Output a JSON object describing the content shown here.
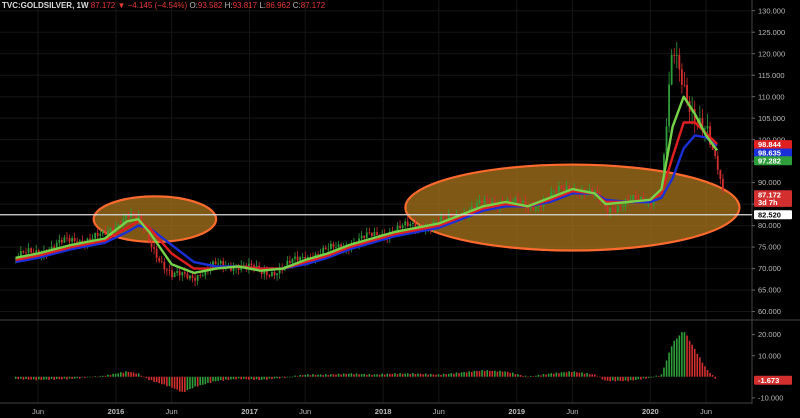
{
  "header": {
    "symbol": "TVC:GOLDSILVER, 1W",
    "last": "87.172",
    "change": "▼ −4.145 (−4.54%)",
    "open_label": "O:",
    "open": "93.582",
    "high_label": "H:",
    "high": "93.817",
    "low_label": "L:",
    "low": "86.962",
    "close_label": "C:",
    "close": "87.172"
  },
  "colors": {
    "background": "#000000",
    "candle_up": "#2e9e3a",
    "candle_down": "#d32f2f",
    "ma_fast": "#76d349",
    "ma_mid": "#e02020",
    "ma_slow": "#1b2fd9",
    "ellipse_fill": "#b07a1e",
    "ellipse_stroke": "#ff6a2e",
    "hline": "#dddddd"
  },
  "chart_data": [
    {
      "type": "candlestick",
      "title": "",
      "x_ticks": [
        "Jun",
        "2016",
        "Jun",
        "2017",
        "Jun",
        "2018",
        "Jun",
        "2019",
        "Jun",
        "2020",
        "Jun"
      ],
      "x_tick_dates": [
        "2015-06",
        "2016-01",
        "2016-06",
        "2017-01",
        "2017-06",
        "2018-01",
        "2018-06",
        "2019-01",
        "2019-06",
        "2020-01",
        "2020-06"
      ],
      "y_ticks": [
        "130.000",
        "125.000",
        "120.000",
        "115.000",
        "110.000",
        "105.000",
        "100.000",
        "95.000",
        "90.000",
        "85.000",
        "80.000",
        "75.000",
        "70.000",
        "65.000",
        "60.000"
      ],
      "ylim": [
        58.5,
        132.5
      ],
      "price_tags": [
        {
          "label": "98.844",
          "value": 98.844,
          "color": "#e02020"
        },
        {
          "label": "98.635",
          "value": 96.9,
          "color": "#1b2fd9"
        },
        {
          "label": "97.282",
          "value": 95.1,
          "color": "#2e9e3a"
        },
        {
          "label": "87.172",
          "value": 87.172,
          "color": "#d32f2f"
        },
        {
          "label": "3d 7h",
          "value": 85.4,
          "color": "#d32f2f"
        },
        {
          "label": "82.520",
          "value": 82.52,
          "color": "#ffffff"
        }
      ],
      "horizontal_line": 82.52,
      "series_close": [
        [
          "2015-04",
          72.5
        ],
        [
          "2015-06",
          74
        ],
        [
          "2015-09",
          76.5
        ],
        [
          "2015-12",
          77.5
        ],
        [
          "2016-02",
          83
        ],
        [
          "2016-03",
          81
        ],
        [
          "2016-04",
          76.5
        ],
        [
          "2016-06",
          68
        ],
        [
          "2016-08",
          68.5
        ],
        [
          "2016-10",
          70.5
        ],
        [
          "2016-12",
          71
        ],
        [
          "2017-02",
          69
        ],
        [
          "2017-04",
          70
        ],
        [
          "2017-06",
          73
        ],
        [
          "2017-08",
          74
        ],
        [
          "2017-10",
          76
        ],
        [
          "2017-12",
          77.5
        ],
        [
          "2018-02",
          79
        ],
        [
          "2018-04",
          80
        ],
        [
          "2018-06",
          80.5
        ],
        [
          "2018-08",
          83
        ],
        [
          "2018-10",
          85
        ],
        [
          "2018-12",
          86
        ],
        [
          "2019-02",
          84
        ],
        [
          "2019-04",
          87
        ],
        [
          "2019-06",
          89
        ],
        [
          "2019-08",
          87
        ],
        [
          "2019-09",
          84
        ],
        [
          "2019-11",
          85.5
        ],
        [
          "2020-01",
          86
        ],
        [
          "2020-02",
          89
        ],
        [
          "2020-03",
          120
        ],
        [
          "2020-04",
          113
        ],
        [
          "2020-05",
          106
        ],
        [
          "2020-06",
          101
        ],
        [
          "2020-07",
          94
        ],
        [
          "2020-07-20",
          87.172
        ]
      ],
      "moving_averages": [
        {
          "color": "#76d349",
          "values": [
            [
              "2015-04",
              72.5
            ],
            [
              "2015-06",
              73.5
            ],
            [
              "2015-09",
              75.5
            ],
            [
              "2015-12",
              77
            ],
            [
              "2016-02",
              81
            ],
            [
              "2016-03",
              81.5
            ],
            [
              "2016-04",
              78.5
            ],
            [
              "2016-06",
              71
            ],
            [
              "2016-08",
              69
            ],
            [
              "2016-10",
              70
            ],
            [
              "2016-12",
              70.5
            ],
            [
              "2017-02",
              69.5
            ],
            [
              "2017-04",
              70
            ],
            [
              "2017-06",
              72
            ],
            [
              "2017-08",
              73.5
            ],
            [
              "2017-10",
              75.5
            ],
            [
              "2017-12",
              77
            ],
            [
              "2018-02",
              78.5
            ],
            [
              "2018-04",
              79.5
            ],
            [
              "2018-06",
              80.5
            ],
            [
              "2018-08",
              82.5
            ],
            [
              "2018-10",
              84.5
            ],
            [
              "2018-12",
              85.5
            ],
            [
              "2019-02",
              84.5
            ],
            [
              "2019-04",
              86.5
            ],
            [
              "2019-06",
              88.5
            ],
            [
              "2019-08",
              87.5
            ],
            [
              "2019-09",
              85
            ],
            [
              "2019-11",
              85.5
            ],
            [
              "2020-01",
              86
            ],
            [
              "2020-02",
              88.5
            ],
            [
              "2020-03",
              103
            ],
            [
              "2020-04",
              110
            ],
            [
              "2020-05",
              106
            ],
            [
              "2020-06",
              101
            ],
            [
              "2020-07",
              97.5
            ]
          ]
        },
        {
          "color": "#e02020",
          "values": [
            [
              "2015-04",
              72
            ],
            [
              "2015-06",
              73
            ],
            [
              "2015-09",
              75
            ],
            [
              "2015-12",
              76.5
            ],
            [
              "2016-02",
              79.5
            ],
            [
              "2016-03",
              81
            ],
            [
              "2016-04",
              79.5
            ],
            [
              "2016-06",
              73.5
            ],
            [
              "2016-08",
              70
            ],
            [
              "2016-10",
              70
            ],
            [
              "2016-12",
              70.5
            ],
            [
              "2017-02",
              70
            ],
            [
              "2017-04",
              70
            ],
            [
              "2017-06",
              71.5
            ],
            [
              "2017-08",
              73
            ],
            [
              "2017-10",
              75
            ],
            [
              "2017-12",
              76.5
            ],
            [
              "2018-02",
              78
            ],
            [
              "2018-04",
              79
            ],
            [
              "2018-06",
              80
            ],
            [
              "2018-08",
              82
            ],
            [
              "2018-10",
              84
            ],
            [
              "2018-12",
              85
            ],
            [
              "2019-02",
              84.5
            ],
            [
              "2019-04",
              86
            ],
            [
              "2019-06",
              88
            ],
            [
              "2019-08",
              87.5
            ],
            [
              "2019-09",
              85.5
            ],
            [
              "2019-11",
              85.5
            ],
            [
              "2020-01",
              86
            ],
            [
              "2020-02",
              87.5
            ],
            [
              "2020-03",
              96
            ],
            [
              "2020-04",
              104
            ],
            [
              "2020-05",
              104
            ],
            [
              "2020-06",
              101.5
            ],
            [
              "2020-07",
              99
            ]
          ]
        },
        {
          "color": "#1b2fd9",
          "values": [
            [
              "2015-04",
              71.5
            ],
            [
              "2015-06",
              72.5
            ],
            [
              "2015-09",
              74.5
            ],
            [
              "2015-12",
              76
            ],
            [
              "2016-02",
              78.5
            ],
            [
              "2016-03",
              80
            ],
            [
              "2016-04",
              79.5
            ],
            [
              "2016-06",
              75.5
            ],
            [
              "2016-08",
              71.5
            ],
            [
              "2016-10",
              70.5
            ],
            [
              "2016-12",
              70.5
            ],
            [
              "2017-02",
              70
            ],
            [
              "2017-04",
              70
            ],
            [
              "2017-06",
              71
            ],
            [
              "2017-08",
              72.5
            ],
            [
              "2017-10",
              74.5
            ],
            [
              "2017-12",
              76
            ],
            [
              "2018-02",
              77.5
            ],
            [
              "2018-04",
              78.5
            ],
            [
              "2018-06",
              79.5
            ],
            [
              "2018-08",
              81.5
            ],
            [
              "2018-10",
              83.5
            ],
            [
              "2018-12",
              84.5
            ],
            [
              "2019-02",
              84.5
            ],
            [
              "2019-04",
              85.5
            ],
            [
              "2019-06",
              87.5
            ],
            [
              "2019-08",
              87.5
            ],
            [
              "2019-09",
              86
            ],
            [
              "2019-11",
              85.5
            ],
            [
              "2020-01",
              85.5
            ],
            [
              "2020-02",
              86.5
            ],
            [
              "2020-03",
              91
            ],
            [
              "2020-04",
              98
            ],
            [
              "2020-05",
              101
            ],
            [
              "2020-06",
              100.5
            ],
            [
              "2020-07",
              98.6
            ]
          ]
        }
      ],
      "ellipses": [
        {
          "x_start": "2015-11",
          "x_end": "2016-10",
          "y_top": 86.8,
          "y_bottom": 76.2
        },
        {
          "x_start": "2018-03",
          "x_end": "2020-09",
          "y_top": 94.2,
          "y_bottom": 74.2
        }
      ]
    },
    {
      "type": "histogram",
      "title": "",
      "y_ticks": [
        "20.000",
        "10.000",
        "-10.000"
      ],
      "ylim": [
        -12,
        26
      ],
      "last_value": "-1.673",
      "values": [
        [
          "2015-04",
          -1
        ],
        [
          "2015-06",
          -1.5
        ],
        [
          "2015-09",
          -1
        ],
        [
          "2015-12",
          0.5
        ],
        [
          "2016-02",
          2.5
        ],
        [
          "2016-03",
          1.5
        ],
        [
          "2016-04",
          -1.5
        ],
        [
          "2016-06",
          -5
        ],
        [
          "2016-07",
          -7.5
        ],
        [
          "2016-08",
          -5
        ],
        [
          "2016-10",
          -2
        ],
        [
          "2016-12",
          -1
        ],
        [
          "2017-02",
          -1.5
        ],
        [
          "2017-04",
          -0.5
        ],
        [
          "2017-06",
          1
        ],
        [
          "2017-08",
          1
        ],
        [
          "2017-10",
          1.5
        ],
        [
          "2017-12",
          1
        ],
        [
          "2018-02",
          1.5
        ],
        [
          "2018-04",
          1.5
        ],
        [
          "2018-06",
          1
        ],
        [
          "2018-08",
          2
        ],
        [
          "2018-10",
          3
        ],
        [
          "2018-12",
          2.5
        ],
        [
          "2019-02",
          0
        ],
        [
          "2019-04",
          1.5
        ],
        [
          "2019-06",
          2.5
        ],
        [
          "2019-08",
          1
        ],
        [
          "2019-09",
          -2
        ],
        [
          "2019-11",
          -2
        ],
        [
          "2020-01",
          -0.5
        ],
        [
          "2020-02",
          1
        ],
        [
          "2020-03",
          16
        ],
        [
          "2020-04",
          22
        ],
        [
          "2020-05",
          13
        ],
        [
          "2020-06",
          4
        ],
        [
          "2020-07",
          -1.673
        ]
      ]
    }
  ]
}
